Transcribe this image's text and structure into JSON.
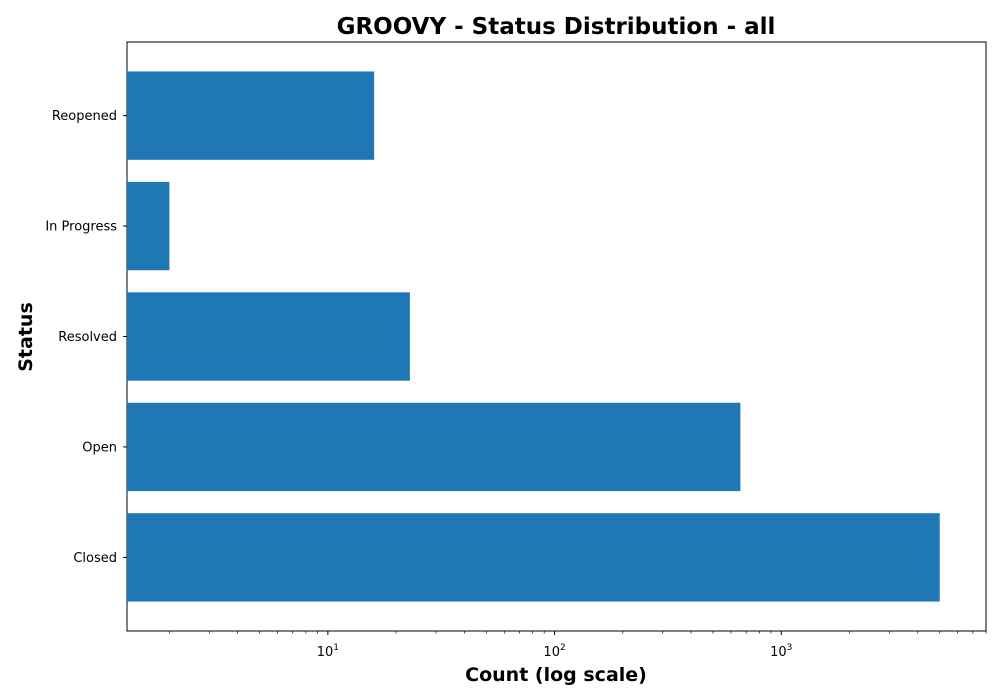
{
  "chart_data": {
    "type": "bar",
    "orientation": "horizontal",
    "title": "GROOVY - Status Distribution - all",
    "xlabel": "Count (log scale)",
    "ylabel": "Status",
    "x_scale": "log",
    "xlim": [
      1.3,
      8000
    ],
    "x_ticks": [
      {
        "value": 10,
        "base": "10",
        "exp": "1"
      },
      {
        "value": 100,
        "base": "10",
        "exp": "2"
      },
      {
        "value": 1000,
        "base": "10",
        "exp": "3"
      }
    ],
    "categories": [
      "Closed",
      "Open",
      "Resolved",
      "In Progress",
      "Reopened"
    ],
    "values": [
      5000,
      660,
      23,
      2,
      16
    ],
    "bar_color": "#1f77b4",
    "grid": false,
    "legend": false
  }
}
